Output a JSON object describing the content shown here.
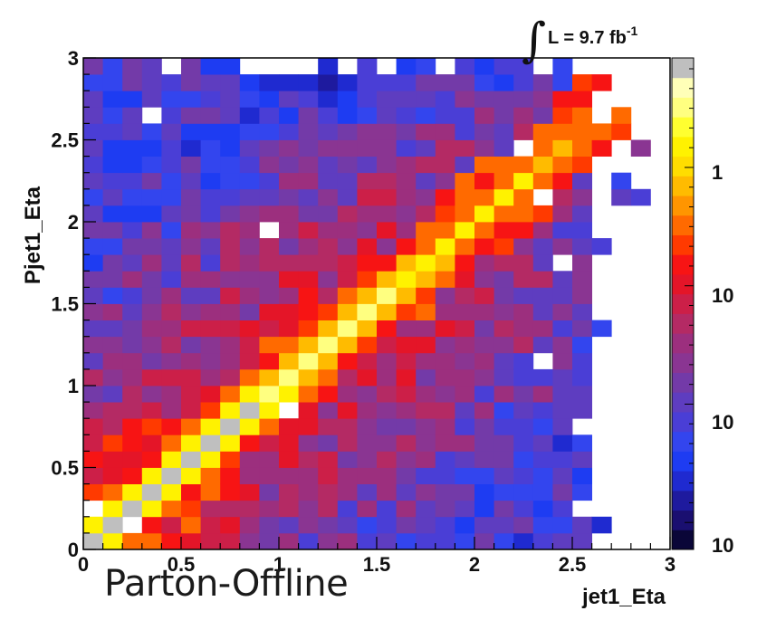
{
  "chart_data": {
    "type": "heatmap",
    "xlabel": "jet1_Eta",
    "ylabel": "Pjet1_Eta",
    "xlim": [
      0,
      3
    ],
    "ylim": [
      0,
      3
    ],
    "nbins": 30,
    "x_ticks": [
      "0",
      "0.5",
      "1",
      "1.5",
      "2",
      "2.5",
      "3"
    ],
    "y_ticks": [
      "0",
      "0.5",
      "1",
      "1.5",
      "2",
      "2.5",
      "3"
    ],
    "colorbar_tick_labels": [
      "1",
      "10",
      "10",
      "10"
    ],
    "colorbar_scale": "log",
    "luminosity_label": {
      "prefix": "L = 9.7 fb",
      "exponent": "-1"
    },
    "caption": "Parton-Offline",
    "pattern": "diagonal correlation, highest counts along x = y, counts decreasing away from diagonal, sparse region above x ≈ 2.5",
    "color_palette": [
      "#0a0638",
      "#1a0f70",
      "#1e1a9e",
      "#1f2ad0",
      "#1e3cf2",
      "#3345ee",
      "#4a3ed6",
      "#5e3dc0",
      "#733aa8",
      "#8a3592",
      "#9c2f7e",
      "#b42a64",
      "#cc1f48",
      "#e41528",
      "#f71414",
      "#ff3a00",
      "#ff6a00",
      "#ff9500",
      "#ffbb00",
      "#ffdd00",
      "#fff200",
      "#ffff30",
      "#ffff80",
      "#ffffb8",
      "#bfbfbf"
    ]
  }
}
